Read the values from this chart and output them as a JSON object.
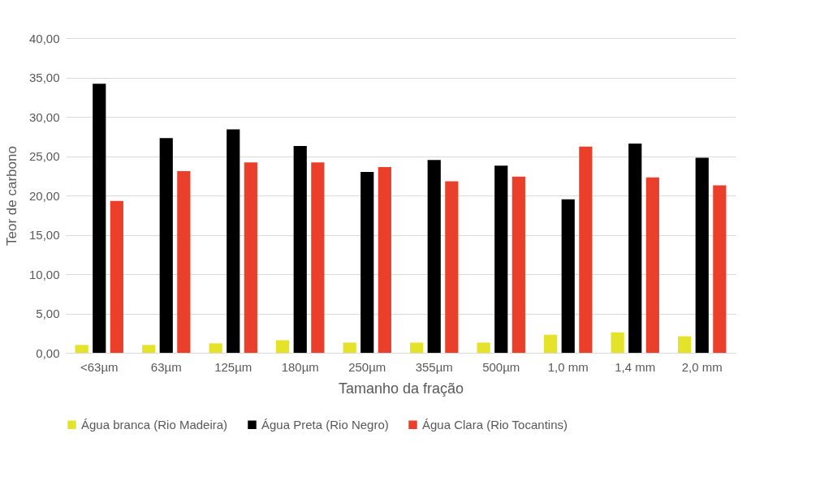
{
  "chart_data": {
    "type": "bar",
    "xlabel": "Tamanho da fração",
    "ylabel": "Teor de carbono",
    "categories": [
      "<63µm",
      "63µm",
      "125µm",
      "180µm",
      "250µm",
      "355µm",
      "500µm",
      "1,0 mm",
      "1,4 mm",
      "2,0 mm"
    ],
    "series": [
      {
        "name": "Água branca (Rio Madeira)",
        "color": "#e5e22a",
        "values": [
          1.0,
          1.0,
          1.2,
          1.6,
          1.3,
          1.3,
          1.3,
          2.3,
          2.6,
          2.1
        ]
      },
      {
        "name": "Água Preta (Rio Negro)",
        "color": "#000000",
        "values": [
          34.2,
          27.3,
          28.4,
          26.3,
          23.0,
          24.5,
          23.8,
          19.5,
          26.6,
          24.8
        ]
      },
      {
        "name": "Água Clara (Rio Tocantins)",
        "color": "#ea3f2a",
        "values": [
          19.3,
          23.1,
          24.2,
          24.2,
          23.6,
          21.8,
          22.4,
          26.2,
          22.3,
          21.3
        ]
      }
    ],
    "ylim": [
      0,
      40
    ],
    "yticks": [
      {
        "value": 0,
        "label": "0,00"
      },
      {
        "value": 5,
        "label": "5,00"
      },
      {
        "value": 10,
        "label": "10,00"
      },
      {
        "value": 15,
        "label": "15,00"
      },
      {
        "value": 20,
        "label": "20,00"
      },
      {
        "value": 25,
        "label": "25,00"
      },
      {
        "value": 30,
        "label": "30,00"
      },
      {
        "value": 35,
        "label": "35,00"
      },
      {
        "value": 40,
        "label": "40,00"
      }
    ],
    "grid": "y",
    "legend": "bottom"
  }
}
